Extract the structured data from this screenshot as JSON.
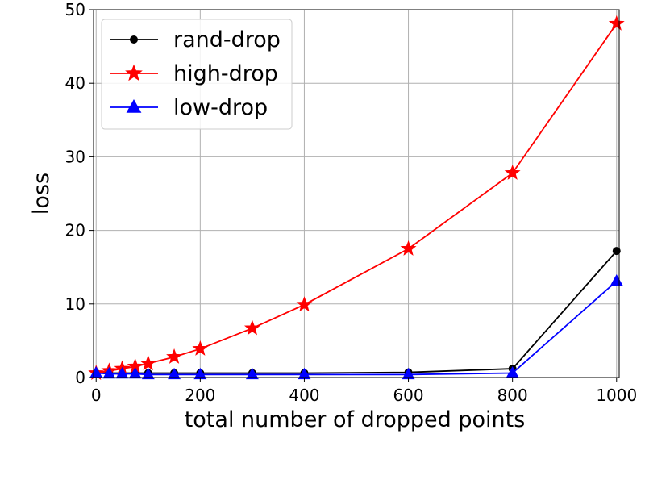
{
  "chart_data": {
    "type": "line",
    "xlabel": "total number of dropped points",
    "ylabel": "loss",
    "xlim": [
      -5,
      1005
    ],
    "ylim": [
      0,
      50
    ],
    "xticks": [
      0,
      200,
      400,
      600,
      800,
      1000
    ],
    "yticks": [
      0,
      10,
      20,
      30,
      40,
      50
    ],
    "grid": true,
    "legend_position": "top-left",
    "series": [
      {
        "name": "rand-drop",
        "color": "#000000",
        "marker": "circle",
        "x": [
          0,
          25,
          50,
          75,
          100,
          150,
          200,
          300,
          400,
          600,
          800,
          1000
        ],
        "y": [
          0.6,
          0.6,
          0.6,
          0.6,
          0.6,
          0.6,
          0.6,
          0.6,
          0.6,
          0.7,
          1.2,
          17.2
        ]
      },
      {
        "name": "high-drop",
        "color": "#ff0000",
        "marker": "star",
        "x": [
          0,
          25,
          50,
          75,
          100,
          150,
          200,
          300,
          400,
          600,
          800,
          1000
        ],
        "y": [
          0.6,
          0.9,
          1.2,
          1.5,
          1.9,
          2.8,
          3.9,
          6.7,
          9.9,
          17.5,
          27.8,
          48.1
        ]
      },
      {
        "name": "low-drop",
        "color": "#0000ff",
        "marker": "triangle",
        "x": [
          0,
          25,
          50,
          75,
          100,
          150,
          200,
          300,
          400,
          600,
          800,
          1000
        ],
        "y": [
          0.6,
          0.5,
          0.5,
          0.5,
          0.4,
          0.4,
          0.4,
          0.4,
          0.4,
          0.4,
          0.6,
          13.1
        ]
      }
    ]
  }
}
